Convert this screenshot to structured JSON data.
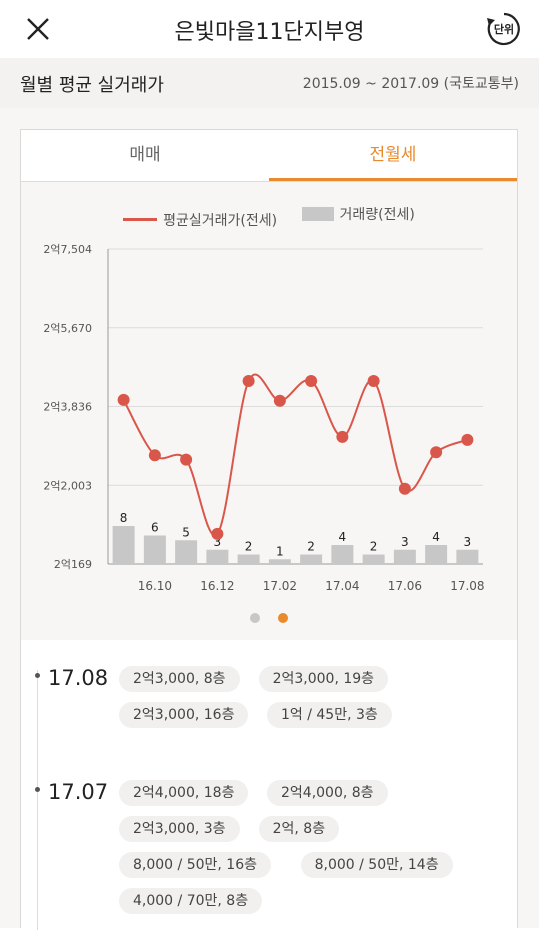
{
  "header": {
    "title": "은빛마을11단지부영",
    "unit_label": "단위"
  },
  "subheader": {
    "title": "월별 평균 실거래가",
    "range": "2015.09 ~ 2017.09 (국토교통부)"
  },
  "tabs": [
    {
      "label": "매매"
    },
    {
      "label": "전월세"
    }
  ],
  "legend": {
    "line": "평균실거래가(전세)",
    "bar": "거래량(전세)"
  },
  "colors": {
    "accent": "#e98a2c",
    "line": "#d9574a",
    "bar": "#c8c7c8"
  },
  "chart_data": {
    "type": "line",
    "y_ticks": [
      "2억7,504",
      "2억5,670",
      "2억3,836",
      "2억2,003",
      "2억169"
    ],
    "ylim": [
      20169,
      27504
    ],
    "x_tick_labels": [
      "16.10",
      "16.12",
      "17.02",
      "17.04",
      "17.06",
      "17.08"
    ],
    "series": [
      {
        "name": "평균실거래가(전세)",
        "type": "line",
        "values": [
          23990,
          22700,
          22600,
          20870,
          24430,
          23970,
          24430,
          23130,
          24430,
          21920,
          22770,
          23060
        ]
      },
      {
        "name": "거래량(전세)",
        "type": "bar",
        "values": [
          8,
          6,
          5,
          3,
          2,
          1,
          2,
          4,
          2,
          3,
          4,
          3
        ]
      }
    ],
    "grid": true
  },
  "pager": {
    "count": 2,
    "active": 1
  },
  "records": [
    {
      "month": "17.08",
      "chips": [
        "2억3,000, 8층",
        "2억3,000, 19층",
        "2억3,000, 16층",
        "1억 / 45만, 3층"
      ]
    },
    {
      "month": "17.07",
      "chips": [
        "2억4,000, 18층",
        "2억4,000, 8층",
        "2억3,000, 3층",
        "2억, 8층",
        "8,000 / 50만, 16층",
        "8,000 / 50만, 14층",
        "4,000 / 70만, 8층"
      ]
    }
  ]
}
